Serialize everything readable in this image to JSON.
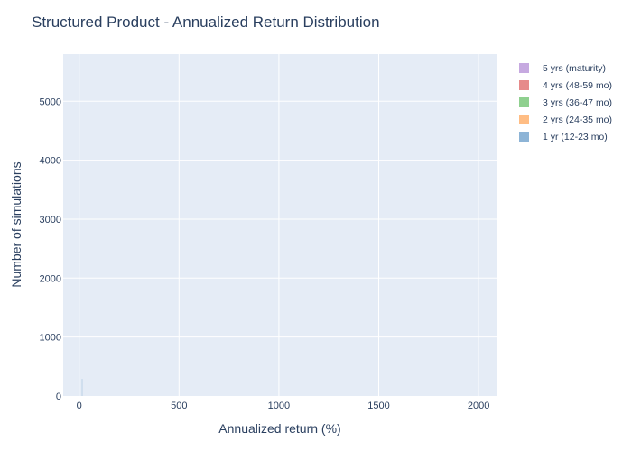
{
  "chart_data": {
    "type": "bar",
    "subtype": "overlaid histogram",
    "title": "Structured Product - Annualized Return Distribution",
    "xlabel": "Annualized return (%)",
    "ylabel": "Number of simulations",
    "xlim": [
      -80,
      2090
    ],
    "ylim": [
      0,
      5800
    ],
    "x_ticks": [
      0,
      500,
      1000,
      1500,
      2000
    ],
    "y_ticks": [
      0,
      1000,
      2000,
      3000,
      4000,
      5000
    ],
    "grid": true,
    "legend_position": "top-right, outside plot area",
    "plot_background": "#E5ECF6",
    "series": [
      {
        "name": "5 yrs (maturity)",
        "color": "#C6A9E0",
        "bins": []
      },
      {
        "name": "4 yrs (48-59 mo)",
        "color": "#E68A8A",
        "bins": []
      },
      {
        "name": "3 yrs (36-47 mo)",
        "color": "#8FD08F",
        "bins": []
      },
      {
        "name": "2 yrs (24-35 mo)",
        "color": "#FFBD84",
        "bins": []
      },
      {
        "name": "1 yr (12-23 mo)",
        "color": "#8DB4D6",
        "bins": [
          {
            "x0": 12,
            "x1": 18,
            "count": 290
          }
        ]
      }
    ]
  }
}
